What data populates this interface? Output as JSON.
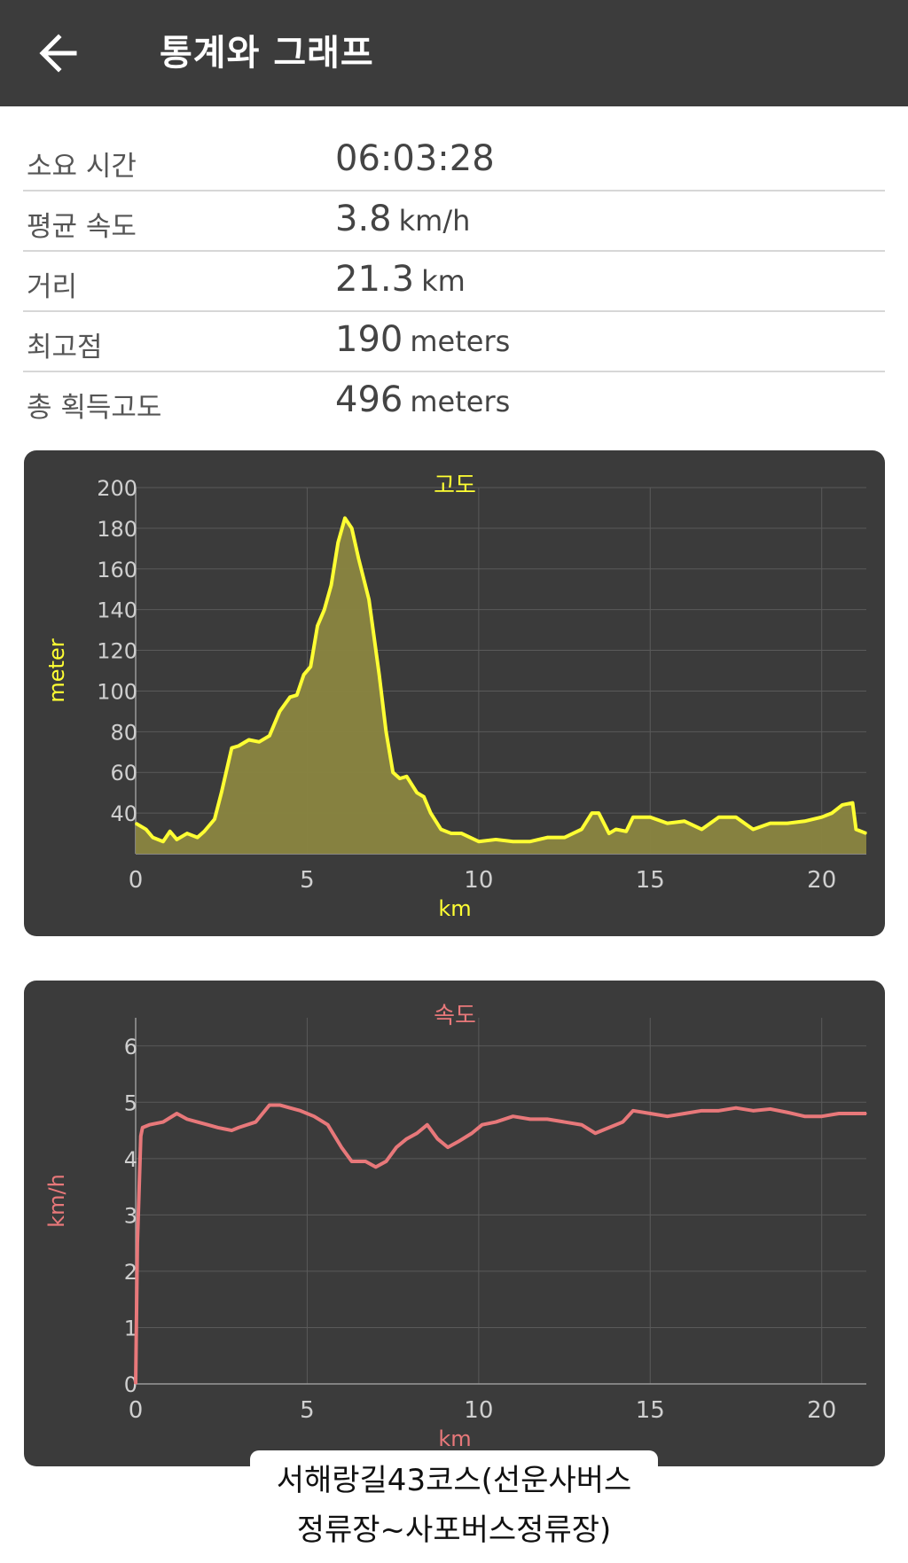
{
  "appbar": {
    "title": "통계와 그래프",
    "back_icon": "arrow-left-icon"
  },
  "stats": [
    {
      "label": "소요 시간",
      "value": "06:03:28",
      "unit": ""
    },
    {
      "label": "평균 속도",
      "value": "3.8",
      "unit": "km/h"
    },
    {
      "label": "거리",
      "value": "21.3",
      "unit": "km"
    },
    {
      "label": "최고점",
      "value": "190",
      "unit": "meters"
    },
    {
      "label": "총 획득고도",
      "value": "496",
      "unit": "meters"
    }
  ],
  "chart_data": [
    {
      "type": "area",
      "title": "고도",
      "xlabel": "km",
      "ylabel": "meter",
      "xlim": [
        0,
        21.3
      ],
      "ylim": [
        20,
        200
      ],
      "x_ticks": [
        0,
        5,
        10,
        15,
        20
      ],
      "y_ticks": [
        40,
        60,
        80,
        100,
        120,
        140,
        160,
        180,
        200
      ],
      "grid": true,
      "color": "#ffff33",
      "fill": "#8a8540",
      "x": [
        0,
        0.3,
        0.5,
        0.8,
        1.0,
        1.2,
        1.5,
        1.8,
        2.0,
        2.3,
        2.5,
        2.8,
        3.0,
        3.3,
        3.6,
        3.9,
        4.2,
        4.5,
        4.7,
        4.9,
        5.1,
        5.3,
        5.5,
        5.7,
        5.9,
        6.1,
        6.3,
        6.5,
        6.8,
        7.1,
        7.3,
        7.5,
        7.7,
        7.9,
        8.2,
        8.4,
        8.6,
        8.9,
        9.2,
        9.5,
        10.0,
        10.5,
        11.0,
        11.5,
        12.0,
        12.5,
        13.0,
        13.3,
        13.5,
        13.8,
        14.0,
        14.3,
        14.5,
        15.0,
        15.5,
        16.0,
        16.5,
        17.0,
        17.5,
        18.0,
        18.5,
        19.0,
        19.5,
        20.0,
        20.3,
        20.6,
        20.9,
        21.0,
        21.3
      ],
      "y": [
        35,
        32,
        28,
        26,
        31,
        27,
        30,
        28,
        31,
        37,
        50,
        72,
        73,
        76,
        75,
        78,
        90,
        97,
        98,
        108,
        112,
        132,
        140,
        152,
        173,
        185,
        180,
        165,
        145,
        108,
        80,
        60,
        57,
        58,
        50,
        48,
        40,
        32,
        30,
        30,
        26,
        27,
        26,
        26,
        28,
        28,
        32,
        40,
        40,
        30,
        32,
        31,
        38,
        38,
        35,
        36,
        32,
        38,
        38,
        32,
        35,
        35,
        36,
        38,
        40,
        44,
        45,
        32,
        30
      ]
    },
    {
      "type": "line",
      "title": "속도",
      "xlabel": "km",
      "ylabel": "km/h",
      "xlim": [
        0,
        21.3
      ],
      "ylim": [
        0,
        6.5
      ],
      "x_ticks": [
        0,
        5,
        10,
        15,
        20
      ],
      "y_ticks": [
        0,
        1,
        2,
        3,
        4,
        5,
        6
      ],
      "grid": true,
      "color": "#e8787a",
      "x": [
        0,
        0.05,
        0.15,
        0.2,
        0.4,
        0.8,
        1.2,
        1.5,
        1.8,
        2.1,
        2.4,
        2.8,
        3.0,
        3.5,
        3.9,
        4.2,
        4.5,
        4.8,
        5.2,
        5.6,
        6.0,
        6.3,
        6.7,
        7.0,
        7.3,
        7.6,
        7.9,
        8.2,
        8.5,
        8.8,
        9.1,
        9.4,
        9.8,
        10.1,
        10.5,
        11.0,
        11.5,
        12.0,
        12.5,
        13.0,
        13.4,
        13.8,
        14.2,
        14.5,
        15.0,
        15.5,
        16.0,
        16.5,
        17.0,
        17.5,
        18.0,
        18.5,
        19.0,
        19.5,
        20.0,
        20.5,
        21.0,
        21.3
      ],
      "y": [
        0,
        2.5,
        4.4,
        4.55,
        4.6,
        4.65,
        4.8,
        4.7,
        4.65,
        4.6,
        4.55,
        4.5,
        4.55,
        4.65,
        4.95,
        4.95,
        4.9,
        4.85,
        4.75,
        4.6,
        4.2,
        3.95,
        3.95,
        3.85,
        3.95,
        4.2,
        4.35,
        4.45,
        4.6,
        4.35,
        4.2,
        4.3,
        4.45,
        4.6,
        4.65,
        4.75,
        4.7,
        4.7,
        4.65,
        4.6,
        4.45,
        4.55,
        4.65,
        4.85,
        4.8,
        4.75,
        4.8,
        4.85,
        4.85,
        4.9,
        4.85,
        4.88,
        4.82,
        4.75,
        4.75,
        4.8,
        4.8,
        4.8
      ]
    }
  ],
  "caption": {
    "line1": "서해랑길43코스(선운사버스",
    "line2": "정류장~사포버스정류장)"
  }
}
